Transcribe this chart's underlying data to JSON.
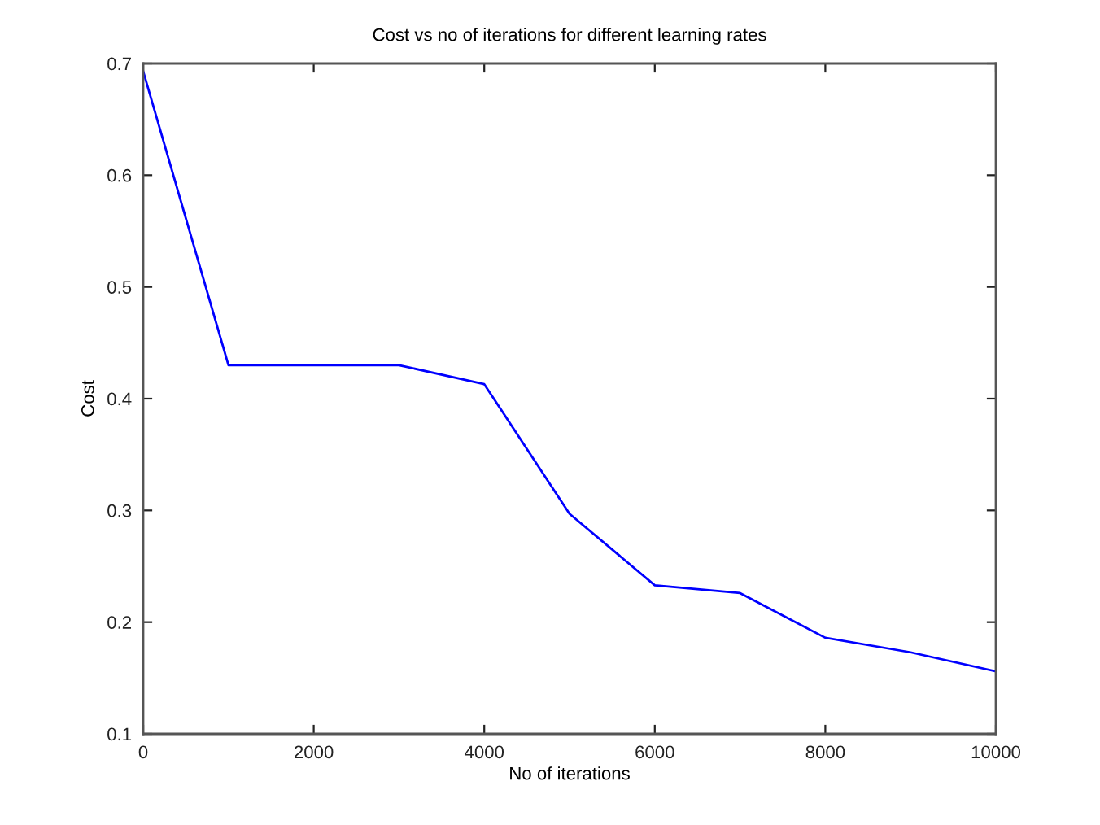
{
  "chart_data": {
    "type": "line",
    "title": "Cost vs no of iterations for different learning rates",
    "xlabel": "No of iterations",
    "ylabel": "Cost",
    "x": [
      0,
      1000,
      2000,
      3000,
      4000,
      5000,
      6000,
      7000,
      8000,
      9000,
      10000
    ],
    "series": [
      {
        "color": "#0000ff",
        "values": [
          0.693,
          0.43,
          0.43,
          0.43,
          0.413,
          0.297,
          0.233,
          0.226,
          0.186,
          0.173,
          0.156
        ]
      }
    ],
    "xlim": [
      0,
      10000
    ],
    "ylim": [
      0.1,
      0.7
    ],
    "xticks": [
      0,
      2000,
      4000,
      6000,
      8000,
      10000
    ],
    "yticks": [
      0.1,
      0.2,
      0.3,
      0.4,
      0.5,
      0.6,
      0.7
    ],
    "line_style": "solid"
  }
}
